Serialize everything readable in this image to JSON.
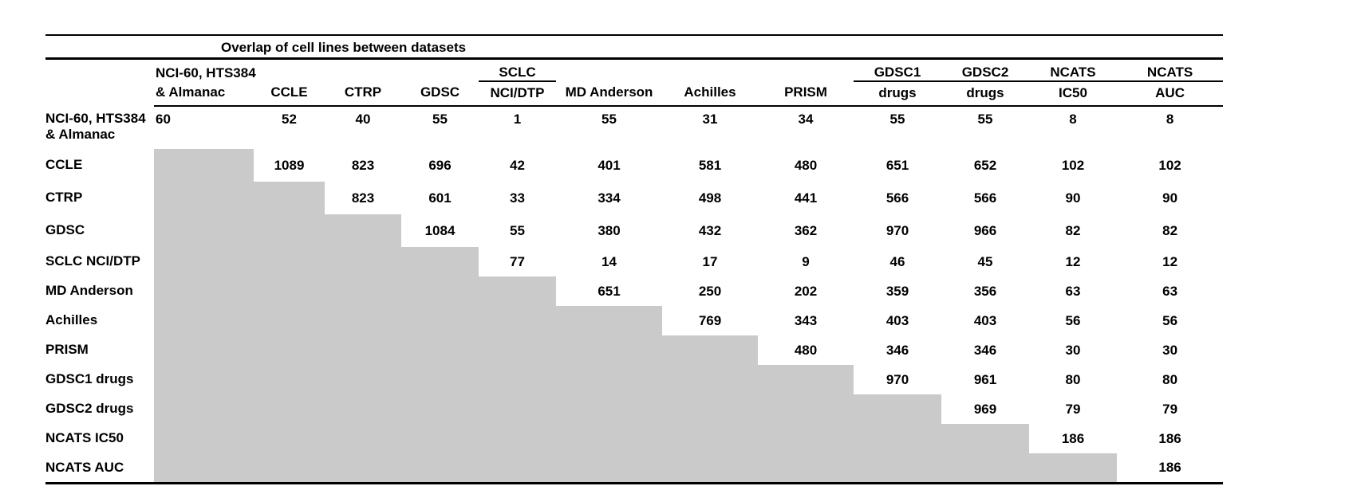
{
  "table": {
    "title": "Overlap of cell lines between datasets",
    "shade_color": "#cacaca",
    "text_color": "#000000",
    "columns": [
      {
        "header_line1": "NCI-60, HTS384",
        "header_line2": "& Almanac",
        "underline_line1": false
      },
      {
        "header_line1": "",
        "header_line2": "CCLE",
        "underline_line1": false
      },
      {
        "header_line1": "",
        "header_line2": "CTRP",
        "underline_line1": false
      },
      {
        "header_line1": "",
        "header_line2": "GDSC",
        "underline_line1": false
      },
      {
        "header_line1": "SCLC",
        "header_line2": "NCI/DTP",
        "underline_line1": true
      },
      {
        "header_line1": "",
        "header_line2": "MD Anderson",
        "underline_line1": false
      },
      {
        "header_line1": "",
        "header_line2": "Achilles",
        "underline_line1": false
      },
      {
        "header_line1": "",
        "header_line2": "PRISM",
        "underline_line1": false
      },
      {
        "header_line1": "GDSC1",
        "header_line2": "drugs",
        "underline_line1": true
      },
      {
        "header_line1": "GDSC2",
        "header_line2": "drugs",
        "underline_line1": true
      },
      {
        "header_line1": "NCATS",
        "header_line2": "IC50",
        "underline_line1": true
      },
      {
        "header_line1": "NCATS",
        "header_line2": "AUC",
        "underline_line1": true
      }
    ],
    "rows": [
      {
        "label_lines": [
          "NCI-60, HTS384",
          "& Almanac"
        ],
        "values": [
          "60",
          "52",
          "40",
          "55",
          "1",
          "55",
          "31",
          "34",
          "55",
          "55",
          "8",
          "8"
        ]
      },
      {
        "label_lines": [
          "CCLE"
        ],
        "values": [
          null,
          "1089",
          "823",
          "696",
          "42",
          "401",
          "581",
          "480",
          "651",
          "652",
          "102",
          "102"
        ]
      },
      {
        "label_lines": [
          "CTRP"
        ],
        "values": [
          null,
          null,
          "823",
          "601",
          "33",
          "334",
          "498",
          "441",
          "566",
          "566",
          "90",
          "90"
        ]
      },
      {
        "label_lines": [
          "GDSC"
        ],
        "values": [
          null,
          null,
          null,
          "1084",
          "55",
          "380",
          "432",
          "362",
          "970",
          "966",
          "82",
          "82"
        ]
      },
      {
        "label_lines": [
          "SCLC NCI/DTP"
        ],
        "values": [
          null,
          null,
          null,
          null,
          "77",
          "14",
          "17",
          "9",
          "46",
          "45",
          "12",
          "12"
        ]
      },
      {
        "label_lines": [
          "MD Anderson"
        ],
        "values": [
          null,
          null,
          null,
          null,
          null,
          "651",
          "250",
          "202",
          "359",
          "356",
          "63",
          "63"
        ]
      },
      {
        "label_lines": [
          "Achilles"
        ],
        "values": [
          null,
          null,
          null,
          null,
          null,
          null,
          "769",
          "343",
          "403",
          "403",
          "56",
          "56"
        ]
      },
      {
        "label_lines": [
          "PRISM"
        ],
        "values": [
          null,
          null,
          null,
          null,
          null,
          null,
          null,
          "480",
          "346",
          "346",
          "30",
          "30"
        ]
      },
      {
        "label_lines": [
          "GDSC1 drugs"
        ],
        "values": [
          null,
          null,
          null,
          null,
          null,
          null,
          null,
          null,
          "970",
          "961",
          "80",
          "80"
        ]
      },
      {
        "label_lines": [
          "GDSC2 drugs"
        ],
        "values": [
          null,
          null,
          null,
          null,
          null,
          null,
          null,
          null,
          null,
          "969",
          "79",
          "79"
        ]
      },
      {
        "label_lines": [
          "NCATS IC50"
        ],
        "values": [
          null,
          null,
          null,
          null,
          null,
          null,
          null,
          null,
          null,
          null,
          "186",
          "186"
        ]
      },
      {
        "label_lines": [
          "NCATS AUC"
        ],
        "values": [
          null,
          null,
          null,
          null,
          null,
          null,
          null,
          null,
          null,
          null,
          null,
          "186"
        ]
      }
    ]
  }
}
